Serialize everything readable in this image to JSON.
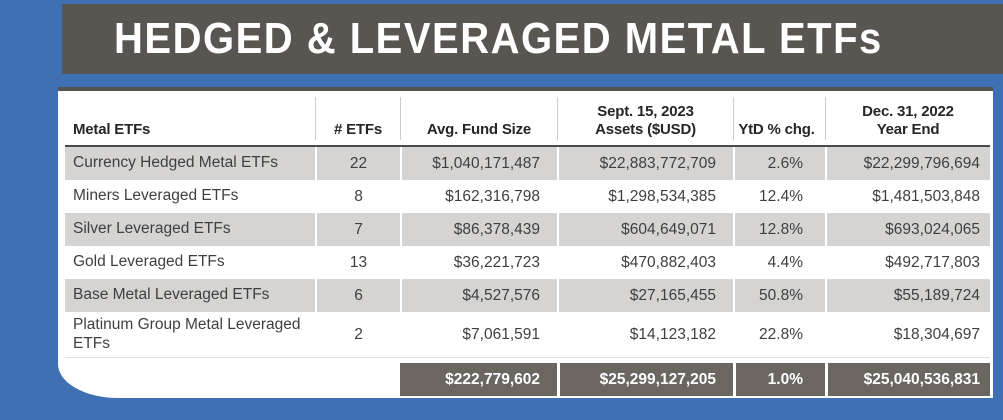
{
  "title": "HEDGED & LEVERAGED METAL ETFs",
  "colors": {
    "page_blue": "#4070B4",
    "title_band_gray": "#595652",
    "totals_band_gray": "#6B6660",
    "row_shade_gray": "#D5D4D2",
    "header_rule_dark": "#4B4B4B",
    "text_dark": "#3F3F3F",
    "text_white": "#FFFFFF"
  },
  "chart_data": {
    "type": "table",
    "title": "HEDGED & LEVERAGED METAL ETFs",
    "columns": [
      {
        "line1": "Metal ETFs",
        "line2": ""
      },
      {
        "line1": "# ETFs",
        "line2": ""
      },
      {
        "line1": "Avg. Fund Size",
        "line2": ""
      },
      {
        "line1": "Sept. 15, 2023",
        "line2": "Assets ($USD)"
      },
      {
        "line1": "YtD % chg.",
        "line2": ""
      },
      {
        "line1": "Dec. 31, 2022",
        "line2": "Year End"
      }
    ],
    "rows": [
      {
        "name": "Currency Hedged Metal ETFs",
        "num_etfs": "22",
        "avg_fund_size": "$1,040,171,487",
        "assets_2023": "$22,883,772,709",
        "ytd_pct_chg": "2.6%",
        "year_end_2022": "$22,299,796,694"
      },
      {
        "name": "Miners Leveraged ETFs",
        "num_etfs": "8",
        "avg_fund_size": "$162,316,798",
        "assets_2023": "$1,298,534,385",
        "ytd_pct_chg": "12.4%",
        "year_end_2022": "$1,481,503,848"
      },
      {
        "name": "Silver Leveraged ETFs",
        "num_etfs": "7",
        "avg_fund_size": "$86,378,439",
        "assets_2023": "$604,649,071",
        "ytd_pct_chg": "12.8%",
        "year_end_2022": "$693,024,065"
      },
      {
        "name": "Gold Leveraged ETFs",
        "num_etfs": "13",
        "avg_fund_size": "$36,221,723",
        "assets_2023": "$470,882,403",
        "ytd_pct_chg": "4.4%",
        "year_end_2022": "$492,717,803"
      },
      {
        "name": "Base Metal Leveraged ETFs",
        "num_etfs": "6",
        "avg_fund_size": "$4,527,576",
        "assets_2023": "$27,165,455",
        "ytd_pct_chg": "50.8%",
        "year_end_2022": "$55,189,724"
      },
      {
        "name": "Platinum Group Metal Leveraged ETFs",
        "num_etfs": "2",
        "avg_fund_size": "$7,061,591",
        "assets_2023": "$14,123,182",
        "ytd_pct_chg": "22.8%",
        "year_end_2022": "$18,304,697"
      }
    ],
    "totals": {
      "avg_fund_size": "$222,779,602",
      "assets_2023": "$25,299,127,205",
      "ytd_pct_chg": "1.0%",
      "year_end_2022": "$25,040,536,831"
    }
  }
}
